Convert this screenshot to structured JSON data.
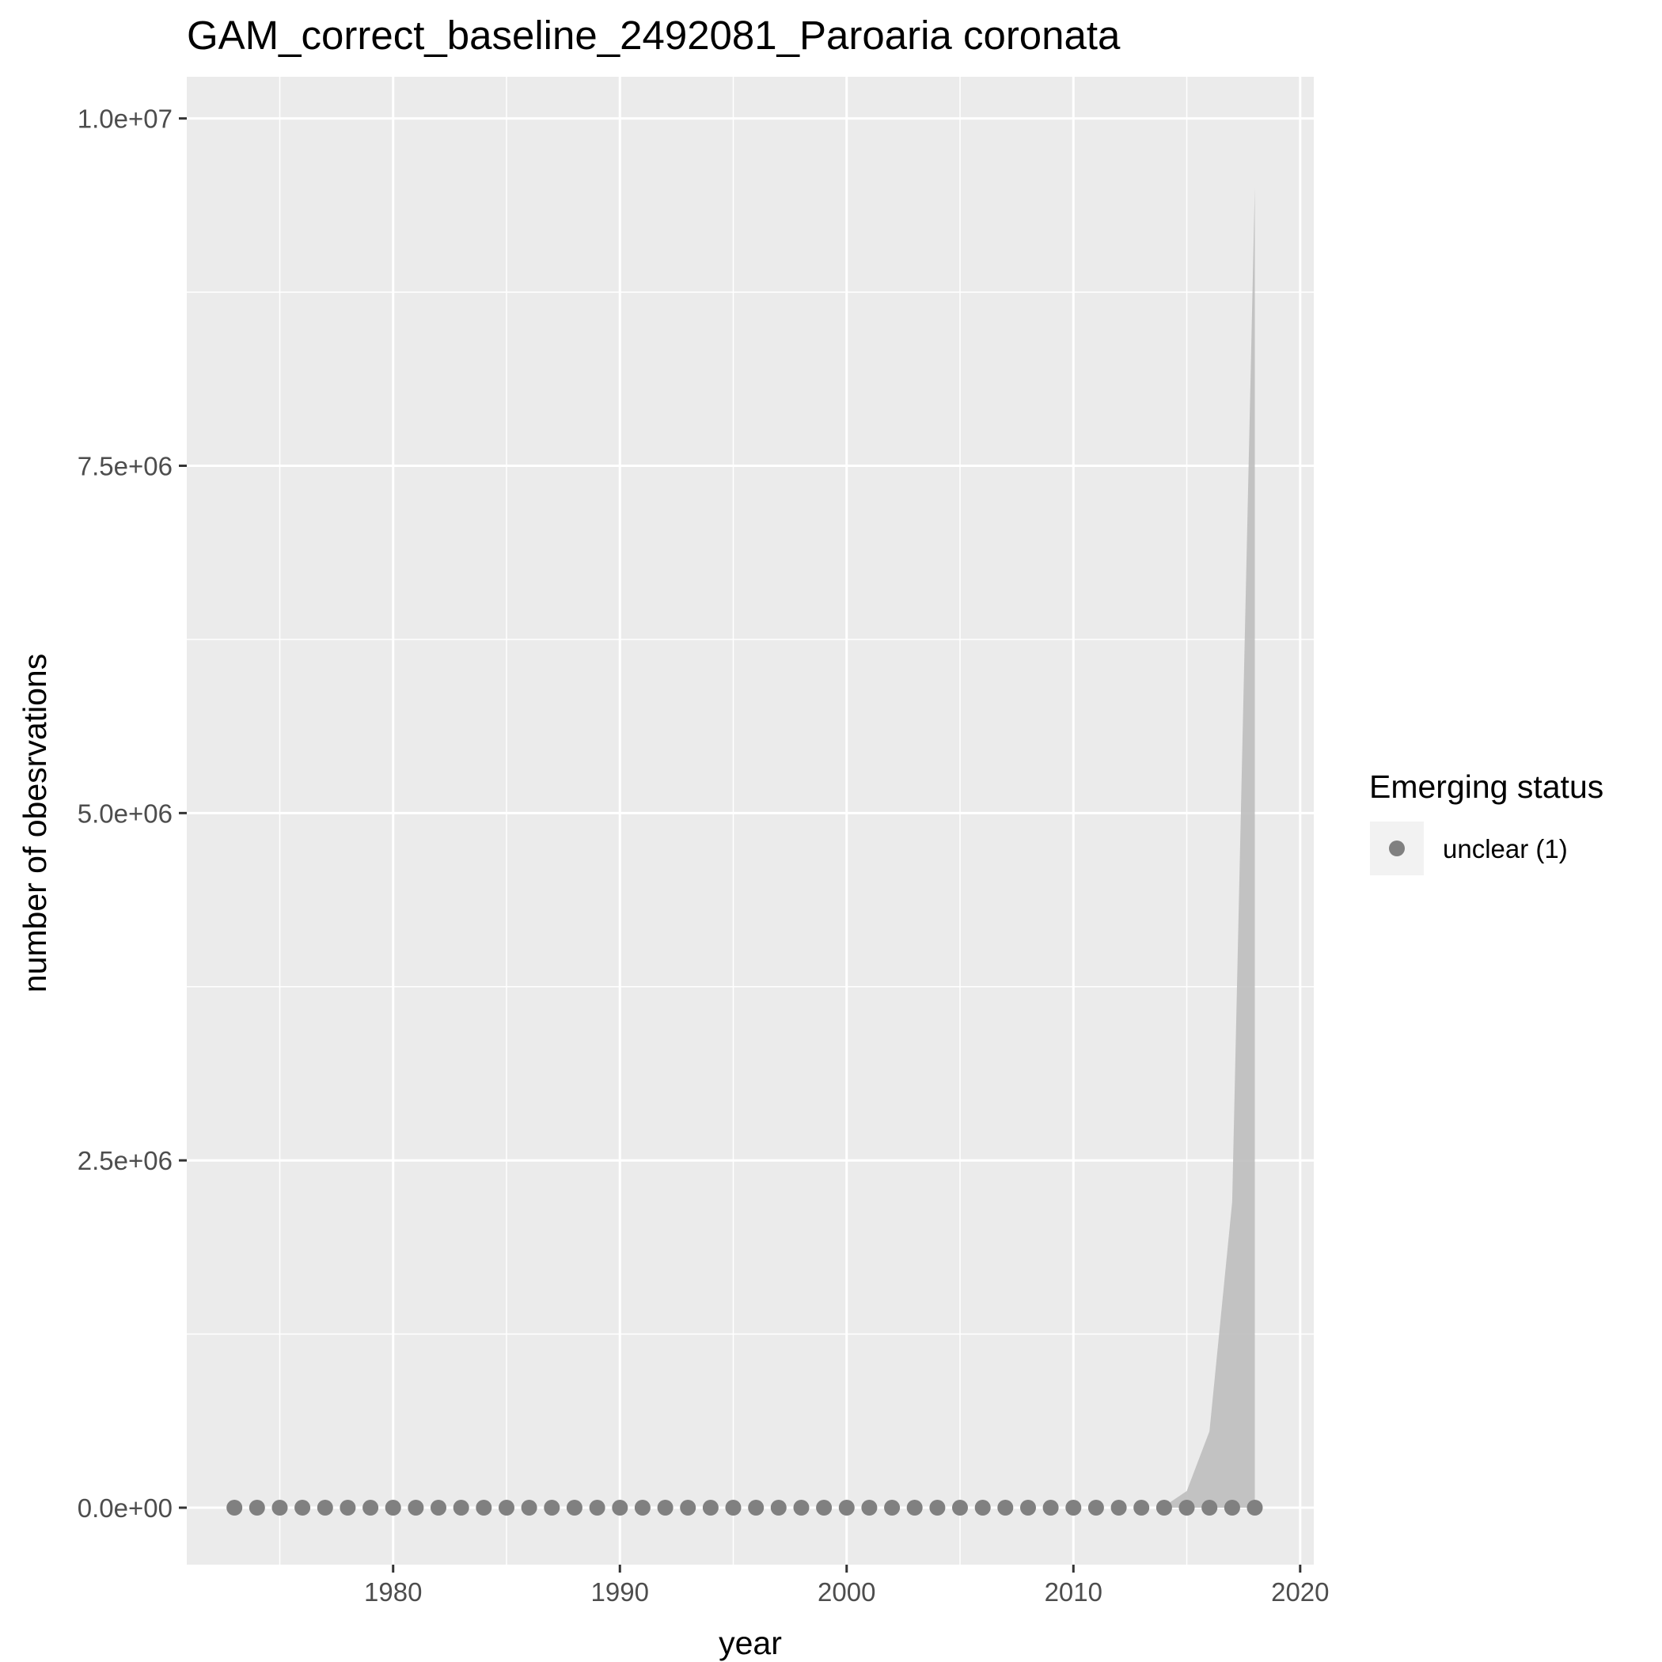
{
  "chart_data": {
    "type": "line",
    "title": "GAM_correct_baseline_2492081_Paroaria coronata",
    "xlabel": "year",
    "ylabel": "number of obesrvations",
    "xlim": [
      1970.9,
      2020.6
    ],
    "ylim": [
      -410000,
      10300000
    ],
    "x_ticks": [
      1980,
      1990,
      2000,
      2010,
      2020
    ],
    "x_tick_labels": [
      "1980",
      "1990",
      "2000",
      "2010",
      "2020"
    ],
    "y_ticks": [
      0,
      2500000,
      5000000,
      7500000,
      10000000
    ],
    "y_tick_labels": [
      "0.0e+00",
      "2.5e+06",
      "5.0e+06",
      "7.5e+06",
      "1.0e+07"
    ],
    "grid": true,
    "panel_background": "#EBEBEB",
    "grid_color": "#FFFFFF",
    "series": [
      {
        "name": "unclear (1)",
        "color": "#808080",
        "x": [
          1973,
          1974,
          1975,
          1976,
          1977,
          1978,
          1979,
          1980,
          1981,
          1982,
          1983,
          1984,
          1985,
          1986,
          1987,
          1988,
          1989,
          1990,
          1991,
          1992,
          1993,
          1994,
          1995,
          1996,
          1997,
          1998,
          1999,
          2000,
          2001,
          2002,
          2003,
          2004,
          2005,
          2006,
          2007,
          2008,
          2009,
          2010,
          2011,
          2012,
          2013,
          2014,
          2015,
          2016,
          2017,
          2018
        ],
        "y": [
          0,
          0,
          0,
          0,
          0,
          0,
          0,
          0,
          0,
          0,
          0,
          0,
          0,
          0,
          0,
          0,
          0,
          0,
          0,
          0,
          0,
          0,
          0,
          0,
          0,
          0,
          0,
          0,
          0,
          0,
          0,
          0,
          0,
          0,
          0,
          0,
          0,
          0,
          0,
          0,
          0,
          0,
          0,
          0,
          0,
          0
        ]
      }
    ],
    "confidence_band": {
      "color": "#BEBEBE",
      "x": [
        2014,
        2015,
        2016,
        2017,
        2018
      ],
      "upper": [
        10000,
        120000,
        550000,
        2200000,
        9500000
      ],
      "lower": [
        0,
        0,
        0,
        0,
        0
      ]
    },
    "legend": {
      "title": "Emerging status",
      "entries": [
        "unclear (1)"
      ],
      "position": "right"
    }
  }
}
